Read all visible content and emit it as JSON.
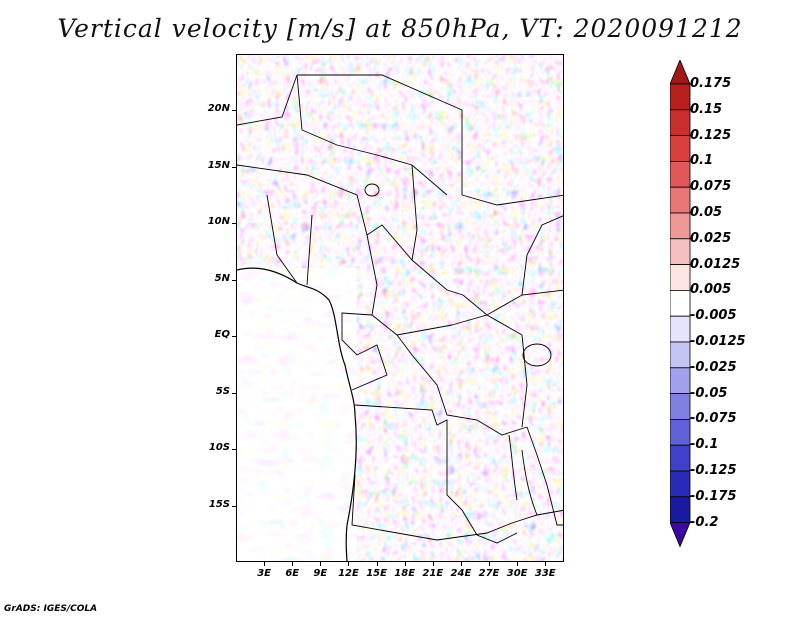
{
  "title": "Vertical velocity [m/s] at 850hPa, VT: 2020091212",
  "footer": "GrADS: IGES/COLA",
  "map": {
    "lat_range": [
      -20,
      25
    ],
    "lon_range": [
      0,
      35
    ],
    "lat_ticks": [
      {
        "value": 20,
        "label": "20N"
      },
      {
        "value": 15,
        "label": "15N"
      },
      {
        "value": 10,
        "label": "10N"
      },
      {
        "value": 5,
        "label": "5N"
      },
      {
        "value": 0,
        "label": "EQ"
      },
      {
        "value": -5,
        "label": "5S"
      },
      {
        "value": -10,
        "label": "10S"
      },
      {
        "value": -15,
        "label": "15S"
      }
    ],
    "lon_ticks": [
      {
        "value": 3,
        "label": "3E"
      },
      {
        "value": 6,
        "label": "6E"
      },
      {
        "value": 9,
        "label": "9E"
      },
      {
        "value": 12,
        "label": "12E"
      },
      {
        "value": 15,
        "label": "15E"
      },
      {
        "value": 18,
        "label": "18E"
      },
      {
        "value": 21,
        "label": "21E"
      },
      {
        "value": 24,
        "label": "24E"
      },
      {
        "value": 27,
        "label": "27E"
      },
      {
        "value": 30,
        "label": "30E"
      },
      {
        "value": 33,
        "label": "33E"
      }
    ]
  },
  "colorbar": {
    "levels": [
      "0.175",
      "0.15",
      "0.125",
      "0.1",
      "0.075",
      "0.05",
      "0.025",
      "0.0125",
      "0.005",
      "-0.005",
      "-0.0125",
      "-0.025",
      "-0.05",
      "-0.075",
      "-0.1",
      "-0.125",
      "-0.175",
      "-0.2"
    ],
    "colors": [
      "#a01818",
      "#b82020",
      "#c83030",
      "#d84040",
      "#e05858",
      "#e87878",
      "#f09898",
      "#f7c0c0",
      "#fde4e4",
      "#ffffff",
      "#e4e4fd",
      "#c4c4f5",
      "#a0a0ec",
      "#8080e0",
      "#6060d8",
      "#4040c8",
      "#2a2ab8",
      "#1a1aa0",
      "#3a0aa0"
    ]
  }
}
